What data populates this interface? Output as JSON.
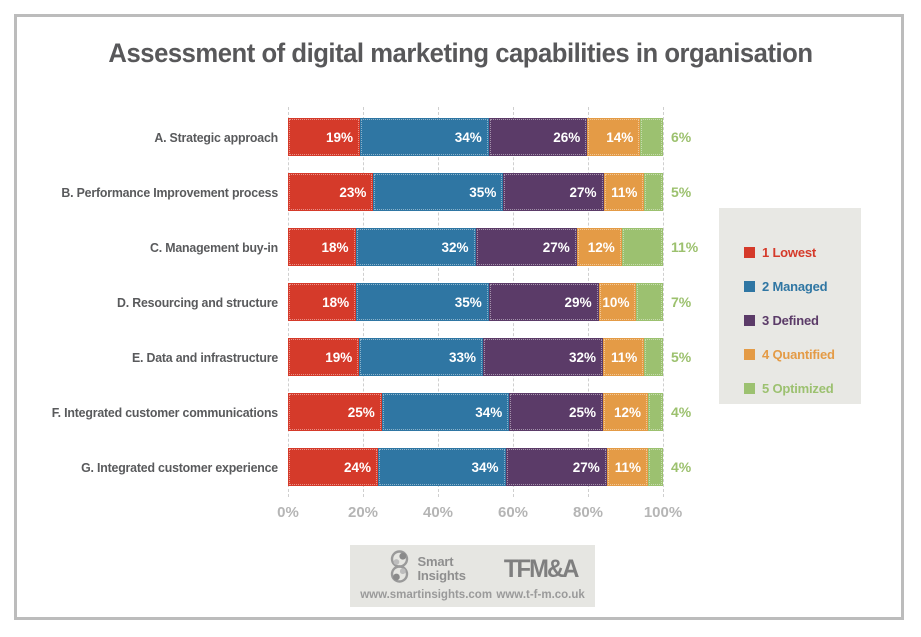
{
  "title": "Assessment of digital marketing capabilities in organisation",
  "chart_data": {
    "type": "bar",
    "orientation": "horizontal-stacked",
    "title": "Assessment of digital marketing capabilities in organisation",
    "categories": [
      "A. Strategic approach",
      "B. Performance Improvement process",
      "C. Management buy-in",
      "D. Resourcing and structure",
      "E. Data and infrastructure",
      "F. Integrated customer communications",
      "G. Integrated customer experience"
    ],
    "series": [
      {
        "name": "1 Lowest",
        "color": "#d53a2a",
        "values": [
          19,
          23,
          18,
          18,
          19,
          25,
          24
        ]
      },
      {
        "name": "2 Managed",
        "color": "#2f76a3",
        "values": [
          34,
          35,
          32,
          35,
          33,
          34,
          34
        ]
      },
      {
        "name": "3 Defined",
        "color": "#5b3b68",
        "values": [
          26,
          27,
          27,
          29,
          32,
          25,
          27
        ]
      },
      {
        "name": "4 Quantified",
        "color": "#e49b46",
        "values": [
          14,
          11,
          12,
          10,
          11,
          12,
          11
        ]
      },
      {
        "name": "5 Optimized",
        "color": "#9cc170",
        "values": [
          6,
          5,
          11,
          7,
          5,
          4,
          4
        ]
      }
    ],
    "x_ticks": [
      "0%",
      "20%",
      "40%",
      "60%",
      "80%",
      "100%"
    ],
    "xlim": [
      0,
      100
    ],
    "grid": "vertical-dashed",
    "legend_position": "right",
    "value_label_format": "{value}%",
    "outside_label_series": "5 Optimized",
    "outside_label_color": "#9cc16e"
  },
  "footer": {
    "smart_insights": {
      "name_line1": "Smart",
      "name_line2": "Insights",
      "url": "www.smartinsights.com"
    },
    "tfma": {
      "name": "TFM&A",
      "url": "www.t-f-m.co.uk"
    }
  }
}
